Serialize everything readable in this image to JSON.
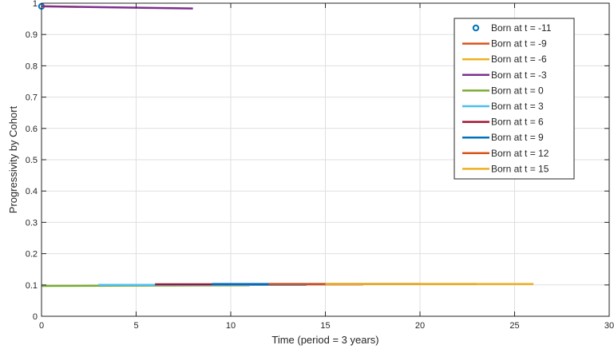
{
  "chart_data": {
    "type": "line",
    "xlabel": "Time (period = 3 years)",
    "ylabel": "Progressivity by Cohort",
    "xlim": [
      0,
      30
    ],
    "ylim": [
      0,
      1
    ],
    "x_ticks": [
      "0",
      "5",
      "10",
      "15",
      "20",
      "25",
      "30"
    ],
    "y_ticks": [
      "0",
      "0.1",
      "0.2",
      "0.3",
      "0.4",
      "0.5",
      "0.6",
      "0.7",
      "0.8",
      "0.9",
      "1"
    ],
    "grid": true,
    "legend_position": "top-right",
    "series": [
      {
        "name": "Born at t = -11",
        "color": "#0072BD",
        "marker": "circle",
        "x": [
          0
        ],
        "y": [
          0.99
        ]
      },
      {
        "name": "Born at t = -9",
        "color": "#D95319",
        "marker": "none",
        "x": [
          0
        ],
        "y": [
          0.99
        ]
      },
      {
        "name": "Born at t = -6",
        "color": "#EDB120",
        "marker": "none",
        "x": [
          0,
          2
        ],
        "y": [
          0.99,
          0.988
        ]
      },
      {
        "name": "Born at t = -3",
        "color": "#7E2F8E",
        "marker": "none",
        "x": [
          0,
          8
        ],
        "y": [
          0.99,
          0.983
        ]
      },
      {
        "name": "Born at t = 0",
        "color": "#77AC30",
        "marker": "none",
        "x": [
          0,
          11
        ],
        "y": [
          0.097,
          0.099
        ]
      },
      {
        "name": "Born at t = 3",
        "color": "#4DBEEE",
        "marker": "none",
        "x": [
          3,
          14
        ],
        "y": [
          0.1,
          0.1
        ]
      },
      {
        "name": "Born at t = 6",
        "color": "#A2142F",
        "marker": "none",
        "x": [
          6,
          17
        ],
        "y": [
          0.102,
          0.102
        ]
      },
      {
        "name": "Born at t = 9",
        "color": "#0072BD",
        "marker": "none",
        "x": [
          9,
          20
        ],
        "y": [
          0.103,
          0.103
        ]
      },
      {
        "name": "Born at t = 12",
        "color": "#D95319",
        "marker": "none",
        "x": [
          12,
          23
        ],
        "y": [
          0.103,
          0.103
        ]
      },
      {
        "name": "Born at t = 15",
        "color": "#EDB120",
        "marker": "none",
        "x": [
          15,
          26
        ],
        "y": [
          0.103,
          0.103
        ]
      }
    ]
  }
}
